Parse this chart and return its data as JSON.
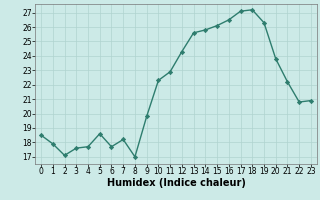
{
  "x": [
    0,
    1,
    2,
    3,
    4,
    5,
    6,
    7,
    8,
    9,
    10,
    11,
    12,
    13,
    14,
    15,
    16,
    17,
    18,
    19,
    20,
    21,
    22,
    23
  ],
  "y": [
    18.5,
    17.9,
    17.1,
    17.6,
    17.7,
    18.6,
    17.7,
    18.2,
    17.0,
    19.8,
    22.3,
    22.9,
    24.3,
    25.6,
    25.8,
    26.1,
    26.5,
    27.1,
    27.2,
    26.3,
    23.8,
    22.2,
    20.8,
    20.9
  ],
  "line_color": "#2e7d6e",
  "marker": "D",
  "marker_size": 2.2,
  "bg_color": "#cceae7",
  "grid_color": "#b0d4d0",
  "xlabel": "Humidex (Indice chaleur)",
  "ylim": [
    16.5,
    27.6
  ],
  "yticks": [
    17,
    18,
    19,
    20,
    21,
    22,
    23,
    24,
    25,
    26,
    27
  ],
  "xticks": [
    0,
    1,
    2,
    3,
    4,
    5,
    6,
    7,
    8,
    9,
    10,
    11,
    12,
    13,
    14,
    15,
    16,
    17,
    18,
    19,
    20,
    21,
    22,
    23
  ],
  "tick_fontsize": 5.5,
  "xlabel_fontsize": 7.0,
  "line_width": 1.0
}
